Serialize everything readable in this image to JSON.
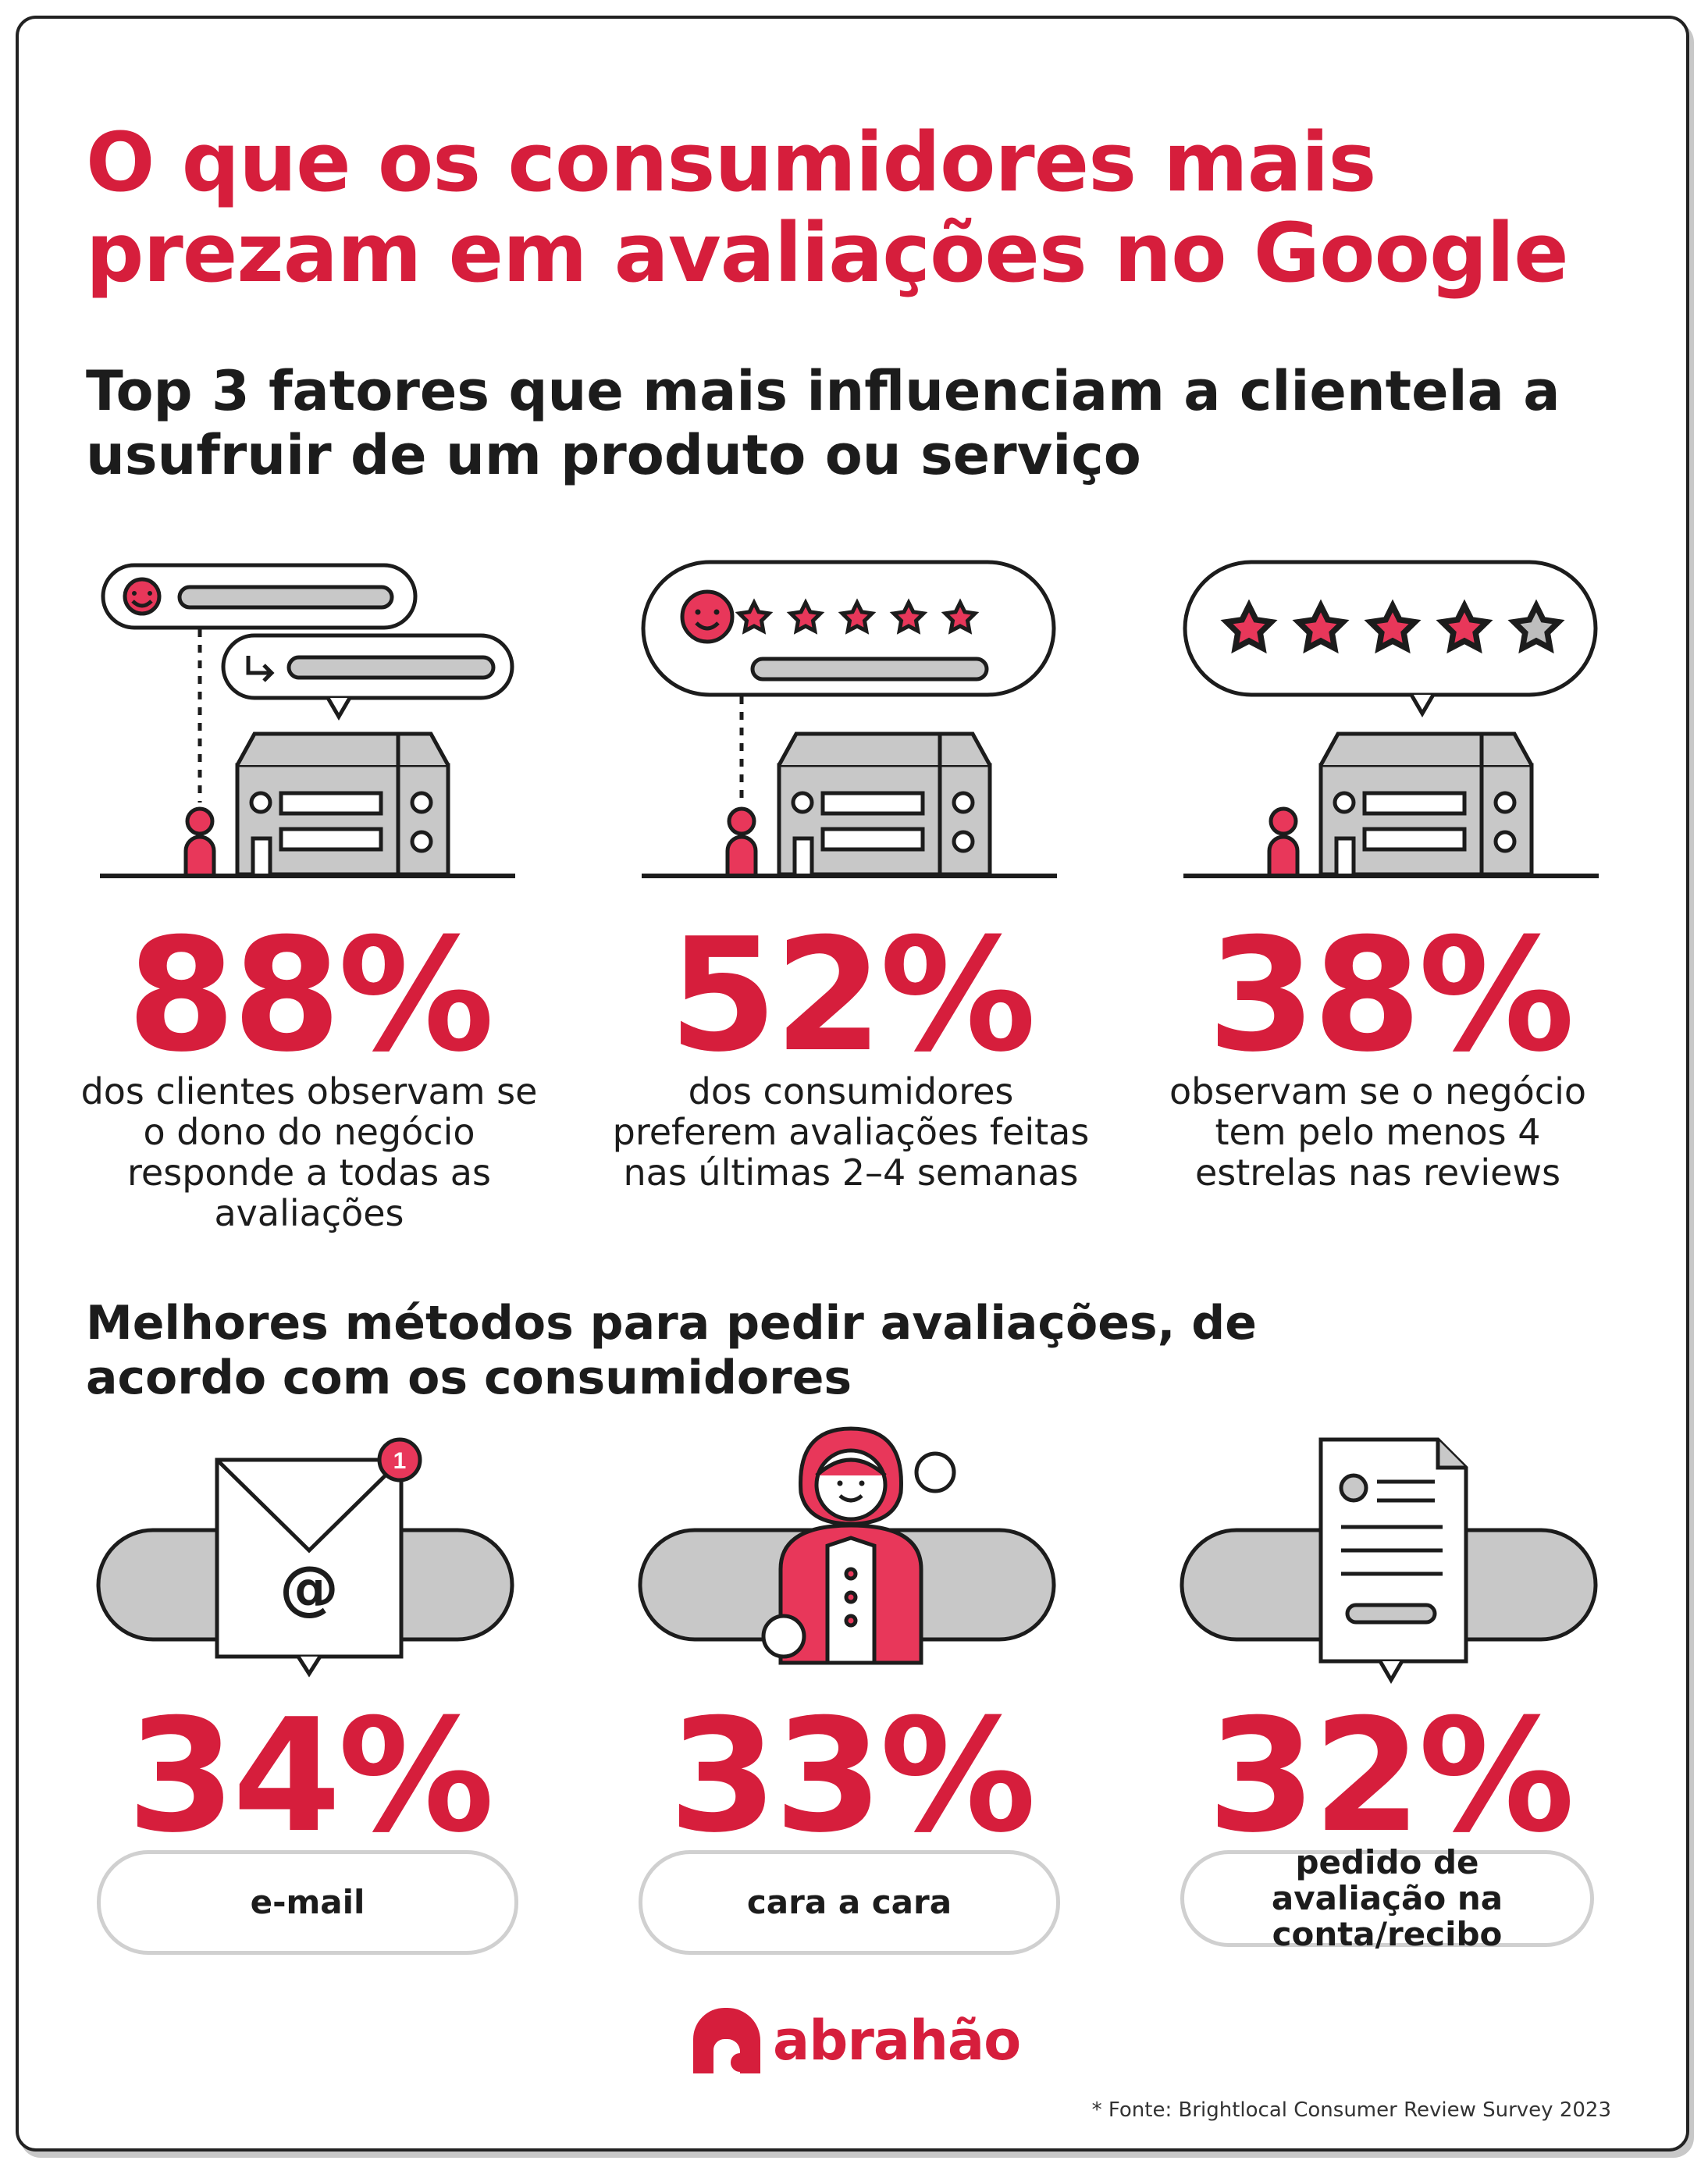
{
  "header": {
    "title": "O que os consumidores mais prezam em avaliações no Google",
    "subtitle": "Top 3 fatores que mais influenciam a clientela a usufruir de um produto ou serviço"
  },
  "factors": [
    {
      "percent": "88%",
      "description": "dos clientes observam se o dono do negócio responde a todas as avaliações"
    },
    {
      "percent": "52%",
      "description": "dos consumidores preferem avaliações feitas nas últimas 2–4 semanas"
    },
    {
      "percent": "38%",
      "description": "observam se o negócio tem pelo menos 4 estrelas nas reviews"
    }
  ],
  "methods_heading": "Melhores métodos para pedir avaliações, de acordo com os consumidores",
  "methods": [
    {
      "percent": "34%",
      "label": "e-mail"
    },
    {
      "percent": "33%",
      "label": "cara a cara"
    },
    {
      "percent": "32%",
      "label": "pedido de avaliação na conta/recibo"
    }
  ],
  "email_badge": "1",
  "email_symbol": "@",
  "brand": {
    "name": "abrahão",
    "color": "#d61e3c"
  },
  "source": "* Fonte: Brightlocal Consumer Review Survey 2023",
  "colors": {
    "accent": "#d61e3c",
    "gray": "#c8c8c8",
    "dark": "#1c1c1c"
  }
}
